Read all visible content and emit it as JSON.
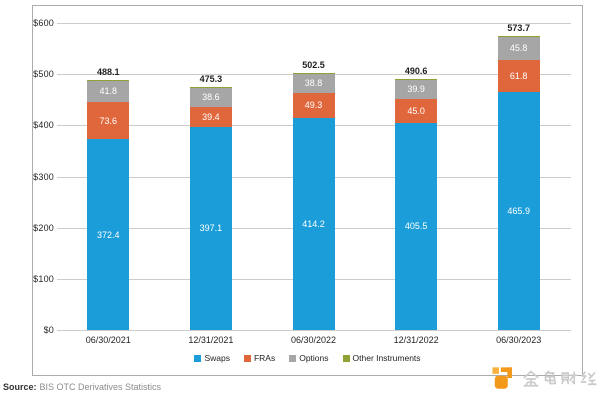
{
  "chart_data": {
    "type": "bar",
    "stacked": true,
    "title": "",
    "xlabel": "",
    "ylabel": "",
    "categories": [
      "06/30/2021",
      "12/31/2021",
      "06/30/2022",
      "12/31/2022",
      "06/30/2023"
    ],
    "series": [
      {
        "name": "Swaps",
        "color": "#1b9dd9",
        "values": [
          372.4,
          397.1,
          414.2,
          405.5,
          465.9
        ],
        "value_labels_visible": true
      },
      {
        "name": "FRAs",
        "color": "#e0673c",
        "values": [
          73.6,
          39.4,
          49.3,
          45.0,
          61.8
        ],
        "value_labels_visible": true
      },
      {
        "name": "Options",
        "color": "#a6a6a6",
        "values": [
          41.8,
          38.6,
          38.8,
          39.9,
          45.8
        ],
        "value_labels_visible": true
      },
      {
        "name": "Other Instruments",
        "color": "#92a135",
        "values": [
          0.3,
          0.2,
          0.2,
          0.2,
          0.2
        ],
        "value_labels_visible": false
      }
    ],
    "totals": [
      488.1,
      475.3,
      502.5,
      490.6,
      573.7
    ],
    "totals_visible": true,
    "ylim": [
      0,
      600
    ],
    "y_ticks": [
      "$0",
      "$100",
      "$200",
      "$300",
      "$400",
      "$500",
      "$600"
    ],
    "grid": true,
    "legend_position": "bottom"
  },
  "source": {
    "label": "Source:",
    "text": "BIS OTC Derivatives Statistics"
  },
  "watermark": {
    "text": "金色财经",
    "logo_color": "#f2991c",
    "logo_color_light": "#f8b13d",
    "text_color": "#cbcbcb"
  }
}
